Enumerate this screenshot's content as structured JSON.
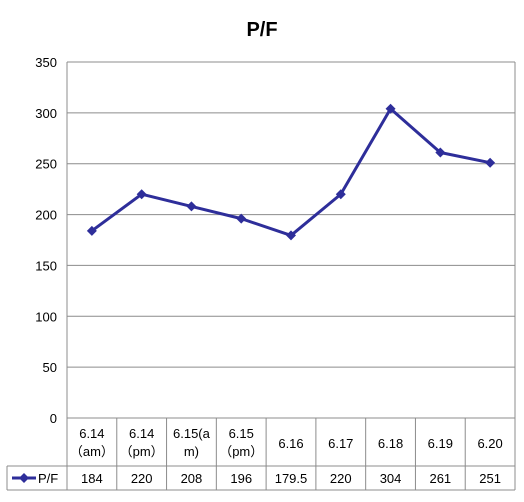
{
  "chart_data": {
    "type": "line",
    "title": "P/F",
    "categories": [
      "6.14（am）",
      "6.14（pm）",
      "6.15(am)",
      "6.15（pm）",
      "6.16",
      "6.17",
      "6.18",
      "6.19",
      "6.20"
    ],
    "category_lines": [
      [
        "6.14",
        "（am）"
      ],
      [
        "6.14",
        "（pm）"
      ],
      [
        "6.15(a",
        "m)"
      ],
      [
        "6.15",
        "（pm）"
      ],
      [
        "6.16"
      ],
      [
        "6.17"
      ],
      [
        "6.18"
      ],
      [
        "6.19"
      ],
      [
        "6.20"
      ]
    ],
    "series": [
      {
        "name": "P/F",
        "values": [
          184,
          220,
          208,
          196,
          179.5,
          220,
          304,
          261,
          251
        ],
        "value_labels": [
          "184",
          "220",
          "208",
          "196",
          "179.5",
          "220",
          "304",
          "261",
          "251"
        ],
        "color": "#2E2E9A",
        "marker": "diamond"
      }
    ],
    "ylim": [
      0,
      350
    ],
    "yticks": [
      0,
      50,
      100,
      150,
      200,
      250,
      300,
      350
    ],
    "xlabel": "",
    "ylabel": "",
    "grid": true,
    "legend": "data-table",
    "data_table": true
  }
}
